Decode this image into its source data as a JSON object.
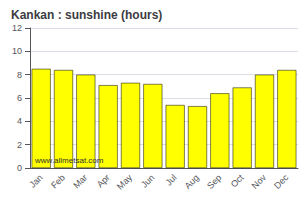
{
  "chart_data": {
    "type": "bar",
    "title": "Kankan : sunshine (hours)",
    "categories": [
      "Jan",
      "Feb",
      "Mar",
      "Apr",
      "May",
      "Jun",
      "Jul",
      "Aug",
      "Sep",
      "Oct",
      "Nov",
      "Dec"
    ],
    "values": [
      8.5,
      8.4,
      8.0,
      7.1,
      7.3,
      7.2,
      5.4,
      5.3,
      6.4,
      6.9,
      8.0,
      8.4
    ],
    "color": "#FFFF00",
    "ylim": [
      0,
      12
    ],
    "yticks": [
      0,
      2,
      4,
      6,
      8,
      10,
      12
    ],
    "grid": true,
    "annotation": "www.allmetsat.com"
  }
}
